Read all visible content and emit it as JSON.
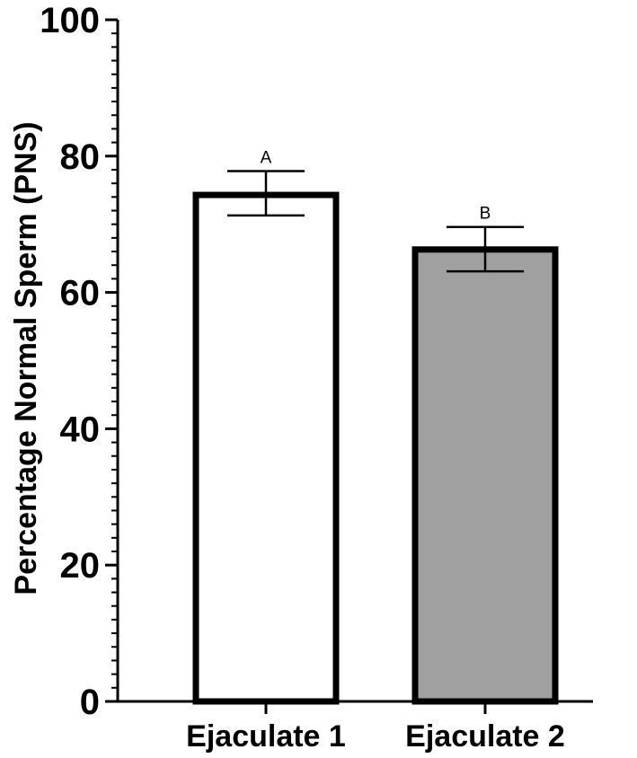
{
  "chart_data": {
    "type": "bar",
    "categories": [
      "Ejaculate 1",
      "Ejaculate 2"
    ],
    "values": [
      74.3,
      66.3
    ],
    "error_upper": [
      77.8,
      69.6
    ],
    "error_lower": [
      71.3,
      63.1
    ],
    "significance_labels": [
      "A",
      "B"
    ],
    "bar_fill_colors": [
      "#ffffff",
      "#a0a0a0"
    ],
    "bar_stroke_color": "#000000",
    "title": "",
    "xlabel": "",
    "ylabel": "Percentage Normal Sperm (PNS)",
    "ylim": [
      0,
      100
    ],
    "y_ticks": [
      0,
      20,
      40,
      60,
      80,
      100
    ],
    "y_minor_tick_step": 2,
    "grid": false,
    "legend": "none"
  }
}
